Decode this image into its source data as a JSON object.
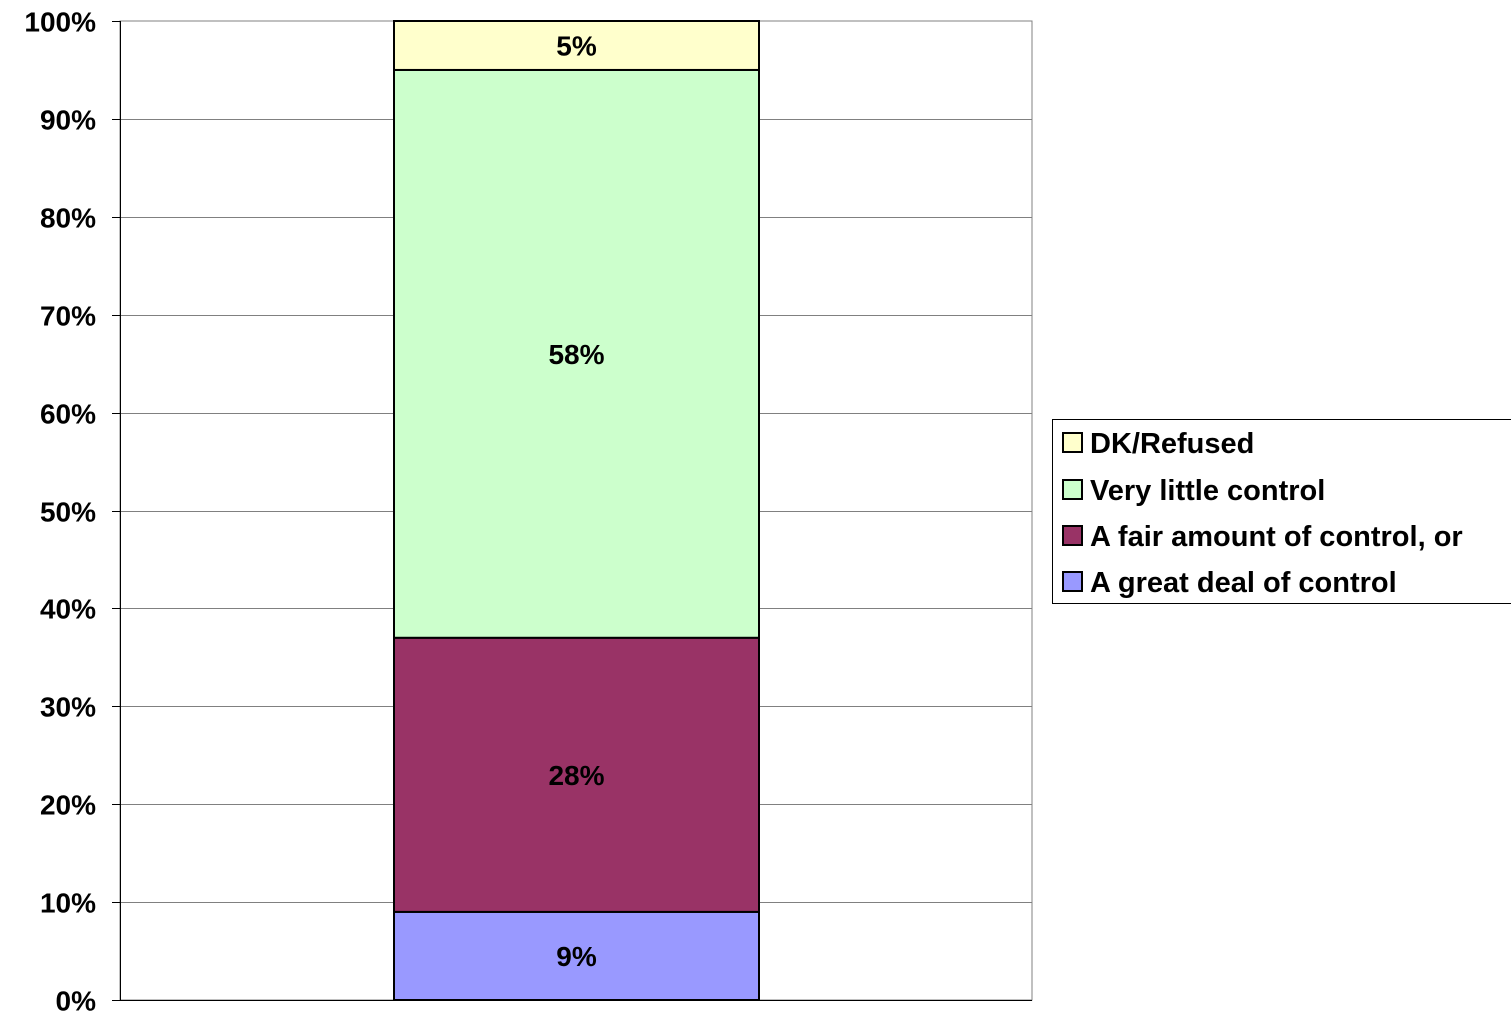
{
  "chart_data": {
    "type": "bar",
    "stacked": true,
    "categories": [
      ""
    ],
    "series": [
      {
        "name": "A great deal of control",
        "values": [
          9
        ],
        "label": "9%",
        "color": "#9999FF"
      },
      {
        "name": "A fair amount of control, or",
        "values": [
          28
        ],
        "label": "28%",
        "color": "#993366"
      },
      {
        "name": "Very little control",
        "values": [
          58
        ],
        "label": "58%",
        "color": "#CCFFCC"
      },
      {
        "name": "DK/Refused",
        "values": [
          5
        ],
        "label": "5%",
        "color": "#FFFFCC"
      }
    ],
    "legend_order": [
      "DK/Refused",
      "Very little control",
      "A fair amount of control, or",
      "A great deal of control"
    ],
    "yticks": [
      "0%",
      "10%",
      "20%",
      "30%",
      "40%",
      "50%",
      "60%",
      "70%",
      "80%",
      "90%",
      "100%"
    ],
    "ylim": [
      0,
      100
    ],
    "grid": true,
    "legend_position": "right"
  }
}
